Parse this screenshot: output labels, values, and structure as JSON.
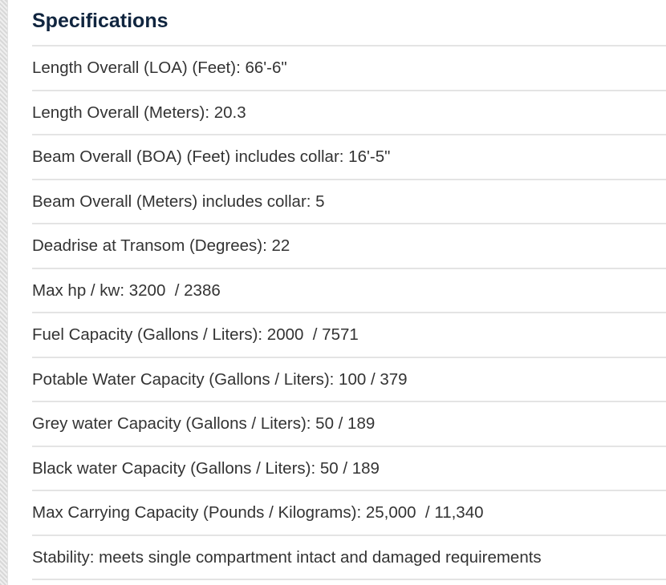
{
  "heading": "Specifications",
  "specs": [
    "Length Overall (LOA) (Feet): 66'-6\"",
    "Length Overall (Meters): 20.3",
    "Beam Overall (BOA) (Feet) includes collar: 16'-5\"",
    "Beam Overall (Meters) includes collar: 5",
    "Deadrise at Transom (Degrees): 22",
    "Max hp / kw: 3200  / 2386",
    "Fuel Capacity (Gallons / Liters): 2000  / 7571",
    "Potable Water Capacity (Gallons / Liters): 100 / 379",
    "Grey water Capacity (Gallons / Liters): 50 / 189",
    "Black water Capacity (Gallons / Liters): 50 / 189",
    "Max Carrying Capacity (Pounds / Kilograms): 25,000  / 11,340",
    "Stability: meets single compartment intact and damaged requirements"
  ]
}
